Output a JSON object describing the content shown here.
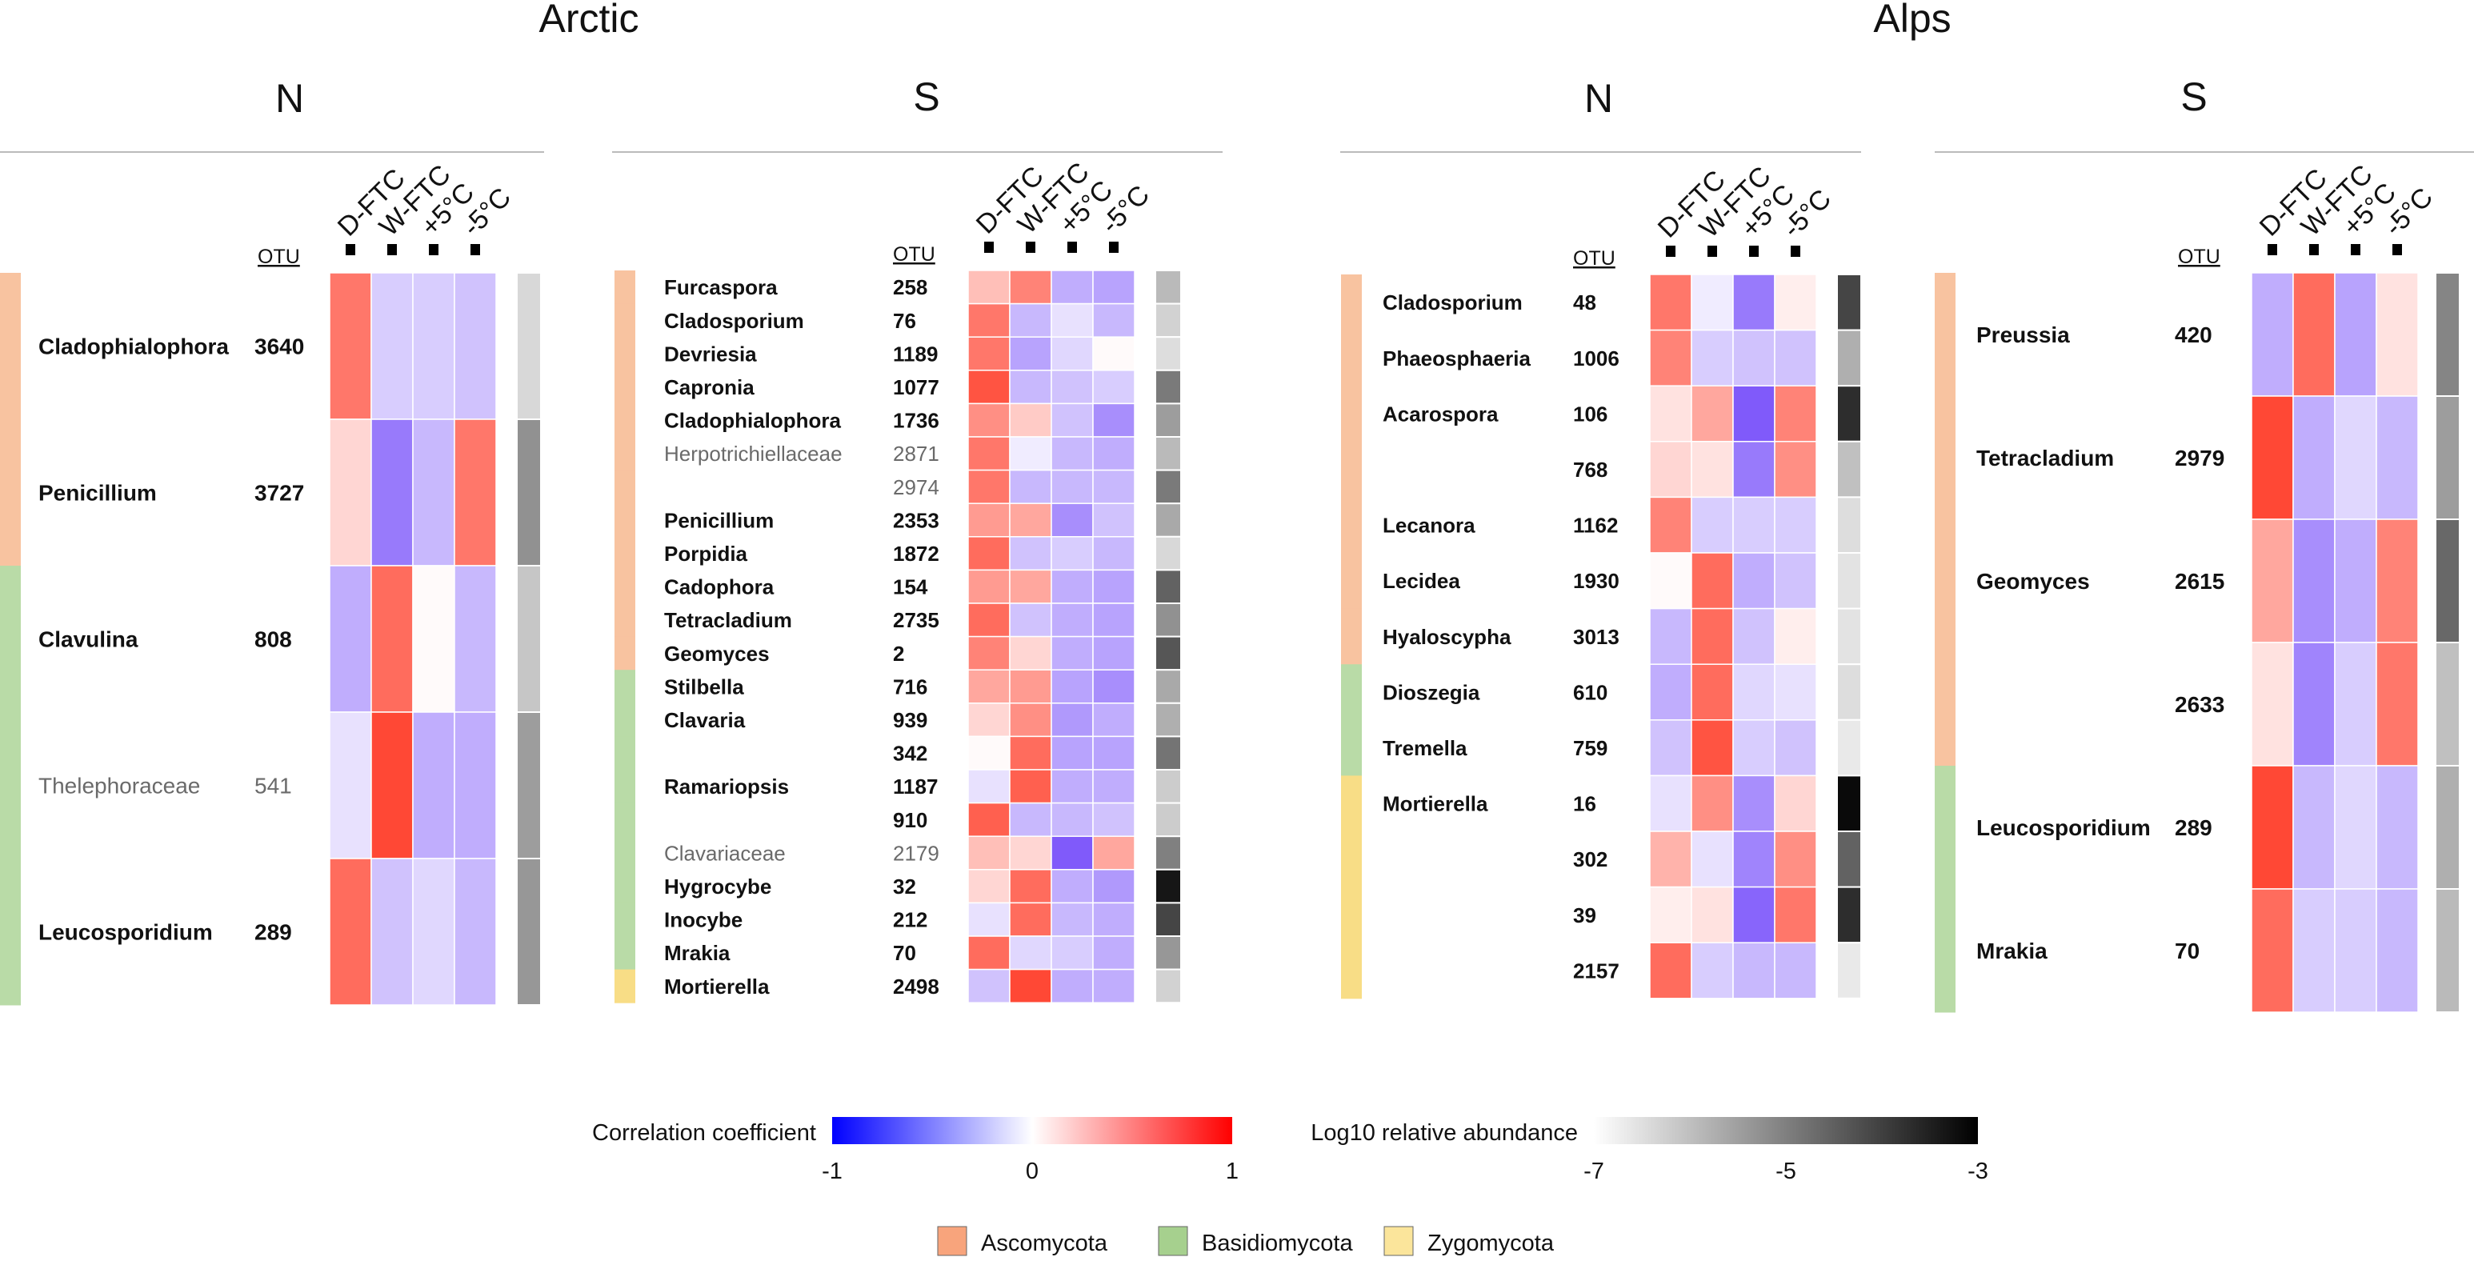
{
  "regions": [
    {
      "title": "Arctic",
      "panels": [
        "N",
        "S"
      ]
    },
    {
      "title": "Alps",
      "panels": [
        "N",
        "S"
      ]
    }
  ],
  "otu_header": "OTU",
  "treatments": [
    "D-FTC",
    "W-FTC",
    "+5°C",
    "-5°C"
  ],
  "phylum_legend": [
    {
      "name": "Ascomycota",
      "color": "#f8c3a0"
    },
    {
      "name": "Basidiomycota",
      "color": "#b9dba7"
    },
    {
      "name": "Zygomycota",
      "color": "#f8dd86"
    }
  ],
  "colorbars": {
    "correlation": {
      "label": "Correlation coefficient",
      "min": -1,
      "mid": 0,
      "max": 1,
      "ticks": [
        "-1",
        "0",
        "1"
      ],
      "colors": [
        "#0000ff",
        "#ffffff",
        "#ff0000"
      ]
    },
    "abundance": {
      "label": "Log10 relative abundance",
      "min": -7,
      "max": -3,
      "ticks": [
        "-7",
        "-5",
        "-3"
      ],
      "colors": [
        "#ffffff",
        "#000000"
      ]
    }
  },
  "chart_data": [
    {
      "type": "heatmap",
      "region": "Arctic",
      "panel": "N",
      "columns": [
        "D-FTC",
        "W-FTC",
        "+5°C",
        "-5°C"
      ],
      "rows": [
        {
          "taxon": "Cladophialophora",
          "otu": "3640",
          "family": false,
          "phylum": "Ascomycota",
          "r": [
            0.55,
            -0.2,
            -0.2,
            -0.25
          ],
          "abundance": -6.5
        },
        {
          "taxon": "Penicillium",
          "otu": "3727",
          "family": false,
          "phylum": "Ascomycota",
          "r": [
            0.15,
            -0.6,
            -0.3,
            0.55
          ],
          "abundance": -5.3
        },
        {
          "taxon": "Clavulina",
          "otu": "808",
          "family": false,
          "phylum": "Basidiomycota",
          "r": [
            -0.35,
            0.6,
            0.0,
            -0.3
          ],
          "abundance": -6.2
        },
        {
          "taxon": "Thelephoraceae",
          "otu": "541",
          "family": true,
          "phylum": "Basidiomycota",
          "r": [
            -0.1,
            0.75,
            -0.35,
            -0.35
          ],
          "abundance": -5.5
        },
        {
          "taxon": "Leucosporidium",
          "otu": "289",
          "family": false,
          "phylum": "Basidiomycota",
          "r": [
            0.6,
            -0.25,
            -0.15,
            -0.3
          ],
          "abundance": -5.4
        }
      ]
    },
    {
      "type": "heatmap",
      "region": "Arctic",
      "panel": "S",
      "columns": [
        "D-FTC",
        "W-FTC",
        "+5°C",
        "-5°C"
      ],
      "rows": [
        {
          "taxon": "Furcaspora",
          "otu": "258",
          "family": false,
          "phylum": "Ascomycota",
          "r": [
            0.25,
            0.5,
            -0.35,
            -0.4
          ],
          "abundance": -6.0
        },
        {
          "taxon": "Cladosporium",
          "otu": "76",
          "family": false,
          "phylum": "Ascomycota",
          "r": [
            0.55,
            -0.3,
            -0.1,
            -0.3
          ],
          "abundance": -6.4
        },
        {
          "taxon": "Devriesia",
          "otu": "1189",
          "family": false,
          "phylum": "Ascomycota",
          "r": [
            0.55,
            -0.4,
            -0.15,
            0.0
          ],
          "abundance": -6.6
        },
        {
          "taxon": "Capronia",
          "otu": "1077",
          "family": false,
          "phylum": "Ascomycota",
          "r": [
            0.7,
            -0.3,
            -0.25,
            -0.2
          ],
          "abundance": -4.9
        },
        {
          "taxon": "Cladophialophora",
          "otu": "1736",
          "family": false,
          "phylum": "Ascomycota",
          "r": [
            0.45,
            0.2,
            -0.25,
            -0.5
          ],
          "abundance": -5.5
        },
        {
          "taxon": "Herpotrichiellaceae",
          "otu": "2871",
          "family": true,
          "phylum": "Ascomycota",
          "r": [
            0.55,
            -0.05,
            -0.3,
            -0.35
          ],
          "abundance": -6.0
        },
        {
          "taxon": "",
          "otu": "2974",
          "family": true,
          "phylum": "Ascomycota",
          "r": [
            0.55,
            -0.3,
            -0.3,
            -0.3
          ],
          "abundance": -4.9
        },
        {
          "taxon": "Penicillium",
          "otu": "2353",
          "family": false,
          "phylum": "Ascomycota",
          "r": [
            0.4,
            0.35,
            -0.5,
            -0.25
          ],
          "abundance": -5.7
        },
        {
          "taxon": "Porpidia",
          "otu": "1872",
          "family": false,
          "phylum": "Ascomycota",
          "r": [
            0.6,
            -0.25,
            -0.2,
            -0.3
          ],
          "abundance": -6.5
        },
        {
          "taxon": "Cadophora",
          "otu": "154",
          "family": false,
          "phylum": "Ascomycota",
          "r": [
            0.4,
            0.35,
            -0.35,
            -0.4
          ],
          "abundance": -4.5
        },
        {
          "taxon": "Tetracladium",
          "otu": "2735",
          "family": false,
          "phylum": "Ascomycota",
          "r": [
            0.6,
            -0.25,
            -0.35,
            -0.4
          ],
          "abundance": -5.3
        },
        {
          "taxon": "Geomyces",
          "otu": "2",
          "family": false,
          "phylum": "Ascomycota",
          "r": [
            0.5,
            0.15,
            -0.35,
            -0.4
          ],
          "abundance": -4.3
        },
        {
          "taxon": "Stilbella",
          "otu": "716",
          "family": false,
          "phylum": "Basidiomycota",
          "r": [
            0.35,
            0.4,
            -0.4,
            -0.5
          ],
          "abundance": -5.7
        },
        {
          "taxon": "Clavaria",
          "otu": "939",
          "family": false,
          "phylum": "Basidiomycota",
          "r": [
            0.15,
            0.45,
            -0.45,
            -0.35
          ],
          "abundance": -5.8
        },
        {
          "taxon": "",
          "otu": "342",
          "family": false,
          "phylum": "Basidiomycota",
          "r": [
            0.0,
            0.6,
            -0.4,
            -0.4
          ],
          "abundance": -4.8
        },
        {
          "taxon": "Ramariopsis",
          "otu": "1187",
          "family": false,
          "phylum": "Basidiomycota",
          "r": [
            -0.1,
            0.65,
            -0.35,
            -0.35
          ],
          "abundance": -6.3
        },
        {
          "taxon": "",
          "otu": "910",
          "family": false,
          "phylum": "Basidiomycota",
          "r": [
            0.65,
            -0.3,
            -0.3,
            -0.25
          ],
          "abundance": -6.3
        },
        {
          "taxon": "Clavariaceae",
          "otu": "2179",
          "family": true,
          "phylum": "Basidiomycota",
          "r": [
            0.25,
            0.15,
            -0.75,
            0.35
          ],
          "abundance": -5.0
        },
        {
          "taxon": "Hygrocybe",
          "otu": "32",
          "family": false,
          "phylum": "Basidiomycota",
          "r": [
            0.15,
            0.6,
            -0.35,
            -0.45
          ],
          "abundance": -3.2
        },
        {
          "taxon": "Inocybe",
          "otu": "212",
          "family": false,
          "phylum": "Basidiomycota",
          "r": [
            -0.1,
            0.6,
            -0.3,
            -0.35
          ],
          "abundance": -4.0
        },
        {
          "taxon": "Mrakia",
          "otu": "70",
          "family": false,
          "phylum": "Basidiomycota",
          "r": [
            0.6,
            -0.15,
            -0.2,
            -0.35
          ],
          "abundance": -5.4
        },
        {
          "taxon": "Mortierella",
          "otu": "2498",
          "family": false,
          "phylum": "Zygomycota",
          "r": [
            -0.25,
            0.75,
            -0.35,
            -0.35
          ],
          "abundance": -6.4
        }
      ]
    },
    {
      "type": "heatmap",
      "region": "Alps",
      "panel": "N",
      "columns": [
        "D-FTC",
        "W-FTC",
        "+5°C",
        "-5°C"
      ],
      "rows": [
        {
          "taxon": "Cladosporium",
          "otu": "48",
          "family": false,
          "phylum": "Ascomycota",
          "r": [
            0.55,
            -0.05,
            -0.6,
            0.05
          ],
          "abundance": -4.0
        },
        {
          "taxon": "Phaeosphaeria",
          "otu": "1006",
          "family": false,
          "phylum": "Ascomycota",
          "r": [
            0.5,
            -0.2,
            -0.25,
            -0.25
          ],
          "abundance": -5.8
        },
        {
          "taxon": "Acarospora",
          "otu": "106",
          "family": false,
          "phylum": "Ascomycota",
          "r": [
            0.1,
            0.35,
            -0.75,
            0.5
          ],
          "abundance": -3.6
        },
        {
          "taxon": "",
          "otu": "768",
          "family": false,
          "phylum": "Ascomycota",
          "r": [
            0.15,
            0.1,
            -0.6,
            0.45
          ],
          "abundance": -6.1
        },
        {
          "taxon": "Lecanora",
          "otu": "1162",
          "family": false,
          "phylum": "Ascomycota",
          "r": [
            0.5,
            -0.2,
            -0.2,
            -0.2
          ],
          "abundance": -6.6
        },
        {
          "taxon": "Lecidea",
          "otu": "1930",
          "family": false,
          "phylum": "Ascomycota",
          "r": [
            0.0,
            0.6,
            -0.35,
            -0.25
          ],
          "abundance": -6.7
        },
        {
          "taxon": "Hyaloscypha",
          "otu": "3013",
          "family": false,
          "phylum": "Ascomycota",
          "r": [
            -0.3,
            0.6,
            -0.25,
            0.05
          ],
          "abundance": -6.7
        },
        {
          "taxon": "Dioszegia",
          "otu": "610",
          "family": false,
          "phylum": "Basidiomycota",
          "r": [
            -0.35,
            0.6,
            -0.15,
            -0.1
          ],
          "abundance": -6.6
        },
        {
          "taxon": "Tremella",
          "otu": "759",
          "family": false,
          "phylum": "Basidiomycota",
          "r": [
            -0.25,
            0.7,
            -0.2,
            -0.25
          ],
          "abundance": -6.8
        },
        {
          "taxon": "Mortierella",
          "otu": "16",
          "family": false,
          "phylum": "Zygomycota",
          "r": [
            -0.1,
            0.45,
            -0.5,
            0.15
          ],
          "abundance": -3.0
        },
        {
          "taxon": "",
          "otu": "302",
          "family": false,
          "phylum": "Zygomycota",
          "r": [
            0.3,
            -0.1,
            -0.55,
            0.45
          ],
          "abundance": -4.5
        },
        {
          "taxon": "",
          "otu": "39",
          "family": false,
          "phylum": "Zygomycota",
          "r": [
            0.05,
            0.1,
            -0.7,
            0.55
          ],
          "abundance": -3.6
        },
        {
          "taxon": "",
          "otu": "2157",
          "family": false,
          "phylum": "Zygomycota",
          "r": [
            0.6,
            -0.2,
            -0.3,
            -0.3
          ],
          "abundance": -6.8
        }
      ]
    },
    {
      "type": "heatmap",
      "region": "Alps",
      "panel": "S",
      "columns": [
        "D-FTC",
        "W-FTC",
        "+5°C",
        "-5°C"
      ],
      "rows": [
        {
          "taxon": "Preussia",
          "otu": "420",
          "family": false,
          "phylum": "Ascomycota",
          "r": [
            -0.35,
            0.6,
            -0.4,
            0.1
          ],
          "abundance": -5.1
        },
        {
          "taxon": "Tetracladium",
          "otu": "2979",
          "family": false,
          "phylum": "Ascomycota",
          "r": [
            0.75,
            -0.35,
            -0.15,
            -0.3
          ],
          "abundance": -5.5
        },
        {
          "taxon": "Geomyces",
          "otu": "2615",
          "family": false,
          "phylum": "Ascomycota",
          "r": [
            0.35,
            -0.5,
            -0.35,
            0.5
          ],
          "abundance": -4.6
        },
        {
          "taxon": "",
          "otu": "2633",
          "family": false,
          "phylum": "Ascomycota",
          "r": [
            0.1,
            -0.55,
            -0.2,
            0.55
          ],
          "abundance": -6.1
        },
        {
          "taxon": "Leucosporidium",
          "otu": "289",
          "family": false,
          "phylum": "Basidiomycota",
          "r": [
            0.75,
            -0.3,
            -0.15,
            -0.3
          ],
          "abundance": -5.8
        },
        {
          "taxon": "Mrakia",
          "otu": "70",
          "family": false,
          "phylum": "Basidiomycota",
          "r": [
            0.6,
            -0.2,
            -0.2,
            -0.3
          ],
          "abundance": -6.0
        }
      ]
    }
  ]
}
